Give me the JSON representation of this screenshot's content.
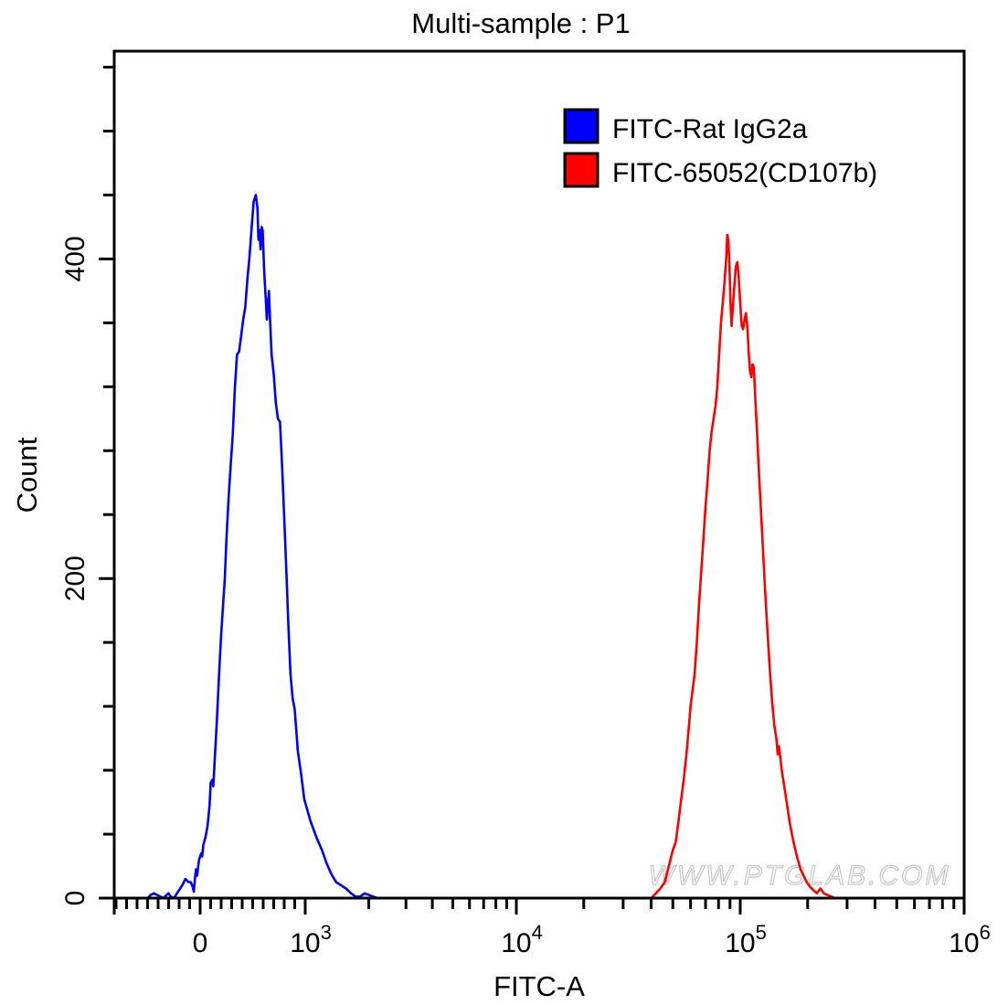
{
  "chart_data": {
    "type": "line",
    "title": "Multi-sample : P1",
    "xlabel": "FITC-A",
    "ylabel": "Count",
    "x_scale": "biexponential",
    "xlim": [
      -800,
      1000000
    ],
    "ylim": [
      0,
      530
    ],
    "y_ticks": [
      {
        "value": 0,
        "label": "0"
      },
      {
        "value": 200,
        "label": "200"
      },
      {
        "value": 400,
        "label": "400"
      }
    ],
    "y_minor_step": 40,
    "x_ticks": [
      {
        "value": 0,
        "base": "0",
        "exp": ""
      },
      {
        "value": 1000,
        "base": "10",
        "exp": "3"
      },
      {
        "value": 10000,
        "base": "10",
        "exp": "4"
      },
      {
        "value": 100000,
        "base": "10",
        "exp": "5"
      },
      {
        "value": 1000000,
        "base": "10",
        "exp": "6"
      }
    ],
    "grid": false,
    "legend_position": "top-right",
    "legend": [
      {
        "label": "FITC-Rat IgG2a",
        "color": "#0000ff"
      },
      {
        "label": "FITC-65052(CD107b)",
        "color": "#ff0000"
      }
    ],
    "series": [
      {
        "name": "FITC-Rat IgG2a",
        "color": "#0000ff",
        "points": [
          [
            -500,
            0
          ],
          [
            -470,
            2
          ],
          [
            -440,
            3
          ],
          [
            -410,
            2
          ],
          [
            -380,
            1
          ],
          [
            -350,
            0
          ],
          [
            -320,
            2
          ],
          [
            -300,
            3
          ],
          [
            -280,
            1
          ],
          [
            -250,
            0
          ],
          [
            -210,
            4
          ],
          [
            -170,
            8
          ],
          [
            -140,
            12
          ],
          [
            -110,
            10
          ],
          [
            -90,
            10
          ],
          [
            -70,
            7
          ],
          [
            -60,
            4
          ],
          [
            -50,
            12
          ],
          [
            -40,
            18
          ],
          [
            -30,
            14
          ],
          [
            -10,
            24
          ],
          [
            10,
            28
          ],
          [
            20,
            26
          ],
          [
            30,
            33
          ],
          [
            50,
            38
          ],
          [
            70,
            45
          ],
          [
            90,
            58
          ],
          [
            100,
            72
          ],
          [
            115,
            74
          ],
          [
            125,
            70
          ],
          [
            140,
            88
          ],
          [
            160,
            112
          ],
          [
            180,
            140
          ],
          [
            200,
            165
          ],
          [
            215,
            180
          ],
          [
            235,
            200
          ],
          [
            250,
            225
          ],
          [
            270,
            250
          ],
          [
            290,
            270
          ],
          [
            310,
            290
          ],
          [
            330,
            318
          ],
          [
            350,
            340
          ],
          [
            370,
            342
          ],
          [
            390,
            352
          ],
          [
            410,
            362
          ],
          [
            430,
            370
          ],
          [
            450,
            388
          ],
          [
            470,
            402
          ],
          [
            490,
            420
          ],
          [
            510,
            436
          ],
          [
            530,
            440
          ],
          [
            545,
            432
          ],
          [
            555,
            412
          ],
          [
            565,
            418
          ],
          [
            575,
            406
          ],
          [
            585,
            420
          ],
          [
            595,
            418
          ],
          [
            610,
            392
          ],
          [
            625,
            374
          ],
          [
            635,
            362
          ],
          [
            645,
            372
          ],
          [
            655,
            380
          ],
          [
            665,
            362
          ],
          [
            680,
            340
          ],
          [
            700,
            328
          ],
          [
            720,
            310
          ],
          [
            740,
            300
          ],
          [
            760,
            298
          ],
          [
            780,
            270
          ],
          [
            800,
            238
          ],
          [
            820,
            205
          ],
          [
            840,
            170
          ],
          [
            860,
            140
          ],
          [
            880,
            125
          ],
          [
            900,
            118
          ],
          [
            930,
            92
          ],
          [
            960,
            78
          ],
          [
            990,
            62
          ],
          [
            1060,
            48
          ],
          [
            1130,
            38
          ],
          [
            1200,
            30
          ],
          [
            1260,
            22
          ],
          [
            1330,
            15
          ],
          [
            1400,
            10
          ],
          [
            1480,
            8
          ],
          [
            1560,
            6
          ],
          [
            1650,
            3
          ],
          [
            1730,
            1
          ],
          [
            1820,
            1
          ],
          [
            1910,
            3
          ],
          [
            2000,
            2
          ],
          [
            2100,
            1
          ],
          [
            2200,
            0
          ],
          [
            2300,
            0
          ]
        ]
      },
      {
        "name": "FITC-65052(CD107b)",
        "color": "#ff0000",
        "points": [
          [
            40000,
            0
          ],
          [
            42000,
            3
          ],
          [
            44000,
            6
          ],
          [
            46000,
            10
          ],
          [
            48000,
            20
          ],
          [
            50000,
            30
          ],
          [
            51500,
            35
          ],
          [
            53000,
            48
          ],
          [
            54500,
            62
          ],
          [
            56000,
            75
          ],
          [
            57500,
            90
          ],
          [
            59000,
            108
          ],
          [
            60000,
            120
          ],
          [
            61000,
            128
          ],
          [
            62500,
            140
          ],
          [
            64000,
            160
          ],
          [
            65500,
            185
          ],
          [
            67000,
            205
          ],
          [
            68500,
            225
          ],
          [
            70000,
            245
          ],
          [
            71500,
            262
          ],
          [
            73000,
            280
          ],
          [
            74500,
            292
          ],
          [
            76000,
            300
          ],
          [
            77500,
            308
          ],
          [
            79000,
            320
          ],
          [
            80500,
            340
          ],
          [
            82000,
            360
          ],
          [
            83500,
            372
          ],
          [
            85000,
            385
          ],
          [
            86500,
            400
          ],
          [
            87500,
            415
          ],
          [
            88500,
            412
          ],
          [
            89500,
            395
          ],
          [
            90500,
            372
          ],
          [
            91500,
            358
          ],
          [
            92500,
            368
          ],
          [
            94000,
            382
          ],
          [
            95500,
            395
          ],
          [
            97000,
            398
          ],
          [
            98500,
            388
          ],
          [
            100000,
            372
          ],
          [
            101500,
            358
          ],
          [
            103000,
            356
          ],
          [
            104500,
            362
          ],
          [
            106000,
            366
          ],
          [
            107500,
            358
          ],
          [
            109000,
            342
          ],
          [
            110500,
            330
          ],
          [
            112000,
            326
          ],
          [
            113500,
            334
          ],
          [
            115000,
            332
          ],
          [
            117000,
            310
          ],
          [
            119000,
            290
          ],
          [
            121000,
            268
          ],
          [
            124000,
            240
          ],
          [
            127000,
            212
          ],
          [
            130000,
            185
          ],
          [
            133000,
            162
          ],
          [
            136000,
            140
          ],
          [
            139000,
            122
          ],
          [
            142000,
            108
          ],
          [
            145000,
            100
          ],
          [
            147000,
            90
          ],
          [
            149000,
            95
          ],
          [
            151000,
            88
          ],
          [
            154000,
            78
          ],
          [
            158000,
            68
          ],
          [
            162000,
            58
          ],
          [
            166000,
            48
          ],
          [
            170000,
            40
          ],
          [
            175000,
            32
          ],
          [
            180000,
            25
          ],
          [
            186000,
            18
          ],
          [
            192000,
            14
          ],
          [
            198000,
            10
          ],
          [
            205000,
            7
          ],
          [
            212000,
            5
          ],
          [
            220000,
            3
          ],
          [
            228000,
            6
          ],
          [
            236000,
            3
          ],
          [
            245000,
            2
          ],
          [
            255000,
            1
          ],
          [
            265000,
            0
          ],
          [
            280000,
            0
          ]
        ]
      }
    ]
  },
  "watermark": "WWW.PTGLAB.COM"
}
